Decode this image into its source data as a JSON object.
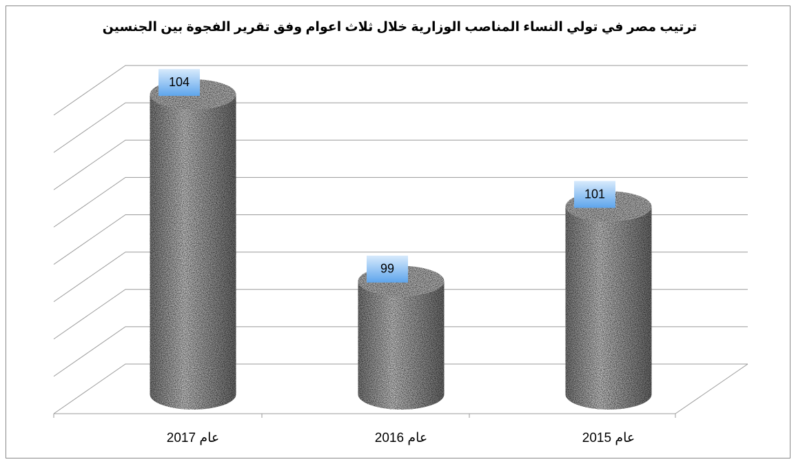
{
  "chart_data": {
    "type": "bar",
    "title": "ترتيب مصر في تولي النساء المناصب الوزارية خلال ثلاث اعوام وفق تقرير الفجوة بين الجنسين",
    "categories": [
      "عام 2017",
      "عام 2016",
      "عام 2015"
    ],
    "values": [
      104,
      99,
      101
    ],
    "ylim": [
      97,
      105
    ],
    "yticks": [
      97,
      98,
      99,
      100,
      101,
      102,
      103,
      104,
      105
    ],
    "grid": true,
    "color": "#9a9a9a"
  }
}
